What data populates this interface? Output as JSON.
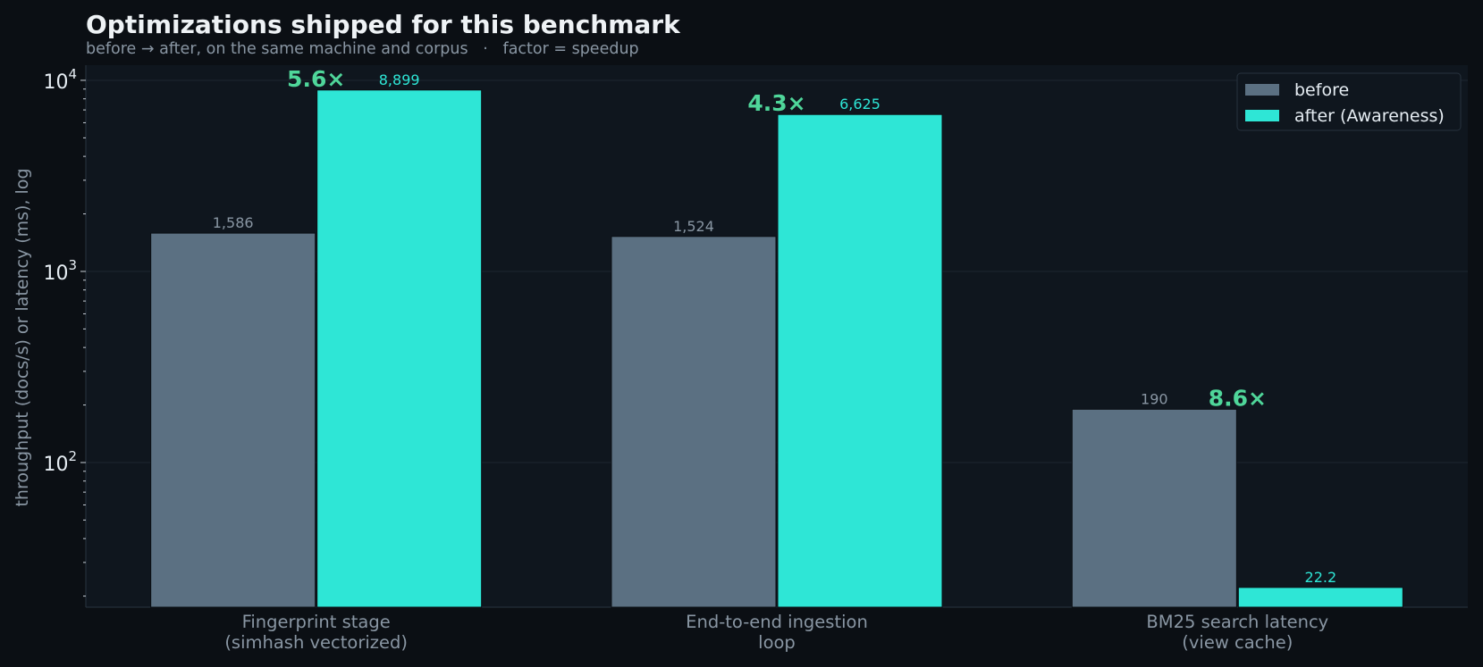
{
  "header": {
    "title": "Optimizations shipped for this benchmark",
    "subtitle": "before → after, on the same machine and corpus   ·   factor = speedup"
  },
  "colors": {
    "background": "#0b0f14",
    "plot_background": "#0f161e",
    "before": "#5b7082",
    "after": "#2ee6d6",
    "factor": "#4fd69a",
    "muted_text": "#8996a3"
  },
  "chart_data": {
    "type": "bar",
    "y_scale": "log",
    "ylabel": "throughput (docs/s) or latency (ms), log",
    "ylim": [
      17.5,
      12000
    ],
    "y_ticks": [
      {
        "value": 100,
        "base": "10",
        "exp": "2"
      },
      {
        "value": 1000,
        "base": "10",
        "exp": "3"
      },
      {
        "value": 10000,
        "base": "10",
        "exp": "4"
      }
    ],
    "grid": true,
    "legend_position": "top-right",
    "categories": [
      [
        "Fingerprint stage",
        "(simhash vectorized)"
      ],
      [
        "End-to-end ingestion",
        "loop"
      ],
      [
        "BM25 search latency",
        "(view cache)"
      ]
    ],
    "series": [
      {
        "name": "before",
        "values": [
          1586,
          1524,
          190
        ],
        "labels": [
          "1,586",
          "1,524",
          "190"
        ]
      },
      {
        "name": "after (Awareness)",
        "values": [
          8899,
          6625,
          22.2
        ],
        "labels": [
          "8,899",
          "6,625",
          "22.2"
        ]
      }
    ],
    "factors": [
      "5.6×",
      "4.3×",
      "8.6×"
    ]
  }
}
